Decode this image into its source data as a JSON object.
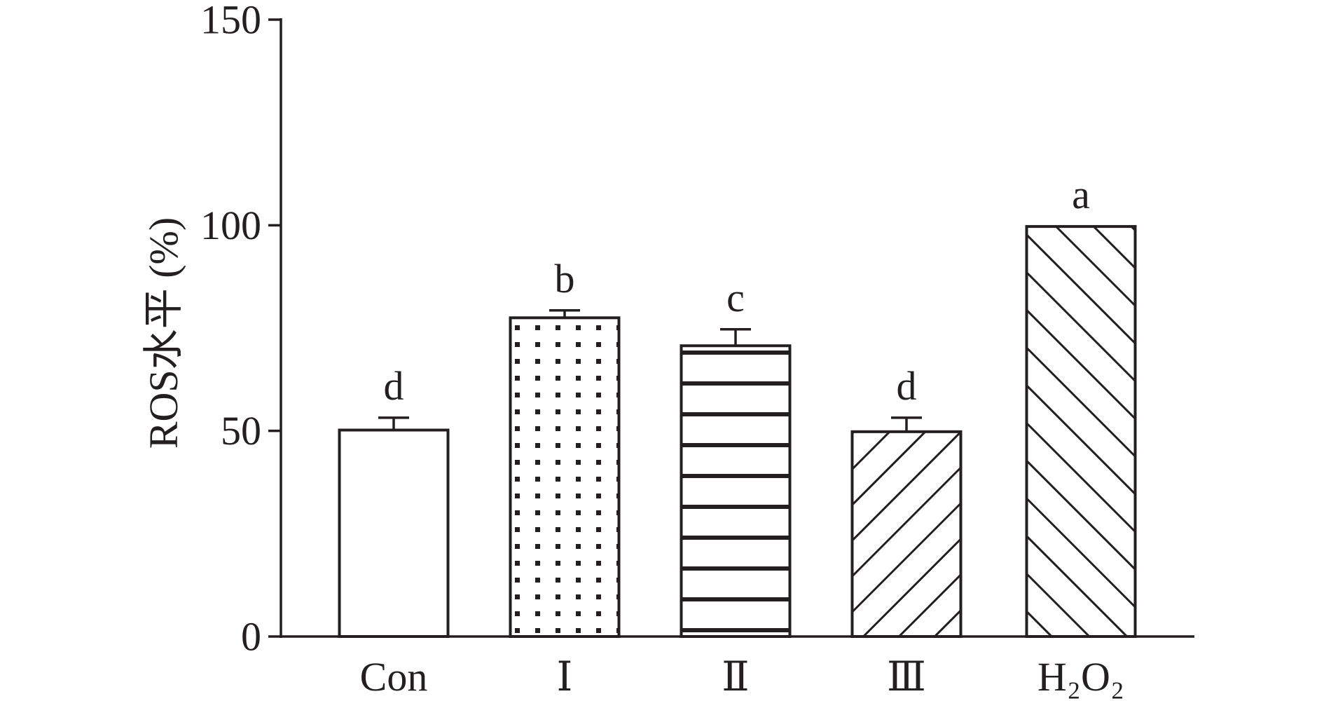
{
  "chart_data": {
    "type": "bar",
    "title": "",
    "xlabel": "",
    "ylabel": "ROS水平 (%)",
    "ylim": [
      0,
      150
    ],
    "yticks": [
      0,
      50,
      100,
      150
    ],
    "grid": false,
    "legend": "none",
    "categories": [
      "Con",
      "Ⅰ",
      "Ⅱ",
      "Ⅲ",
      "H₂O₂"
    ],
    "values": [
      50.2,
      77.5,
      70.7,
      49.8,
      99.7
    ],
    "errors": [
      3.0,
      1.8,
      4.0,
      3.4,
      0
    ],
    "significance": [
      "d",
      "b",
      "c",
      "d",
      "a"
    ],
    "patterns": [
      "solid-white",
      "dots",
      "horizontal-lines",
      "diagonal-wide",
      "diagonal-back"
    ],
    "colors": {
      "ink": "#231f20",
      "fill": "#ffffff"
    }
  }
}
